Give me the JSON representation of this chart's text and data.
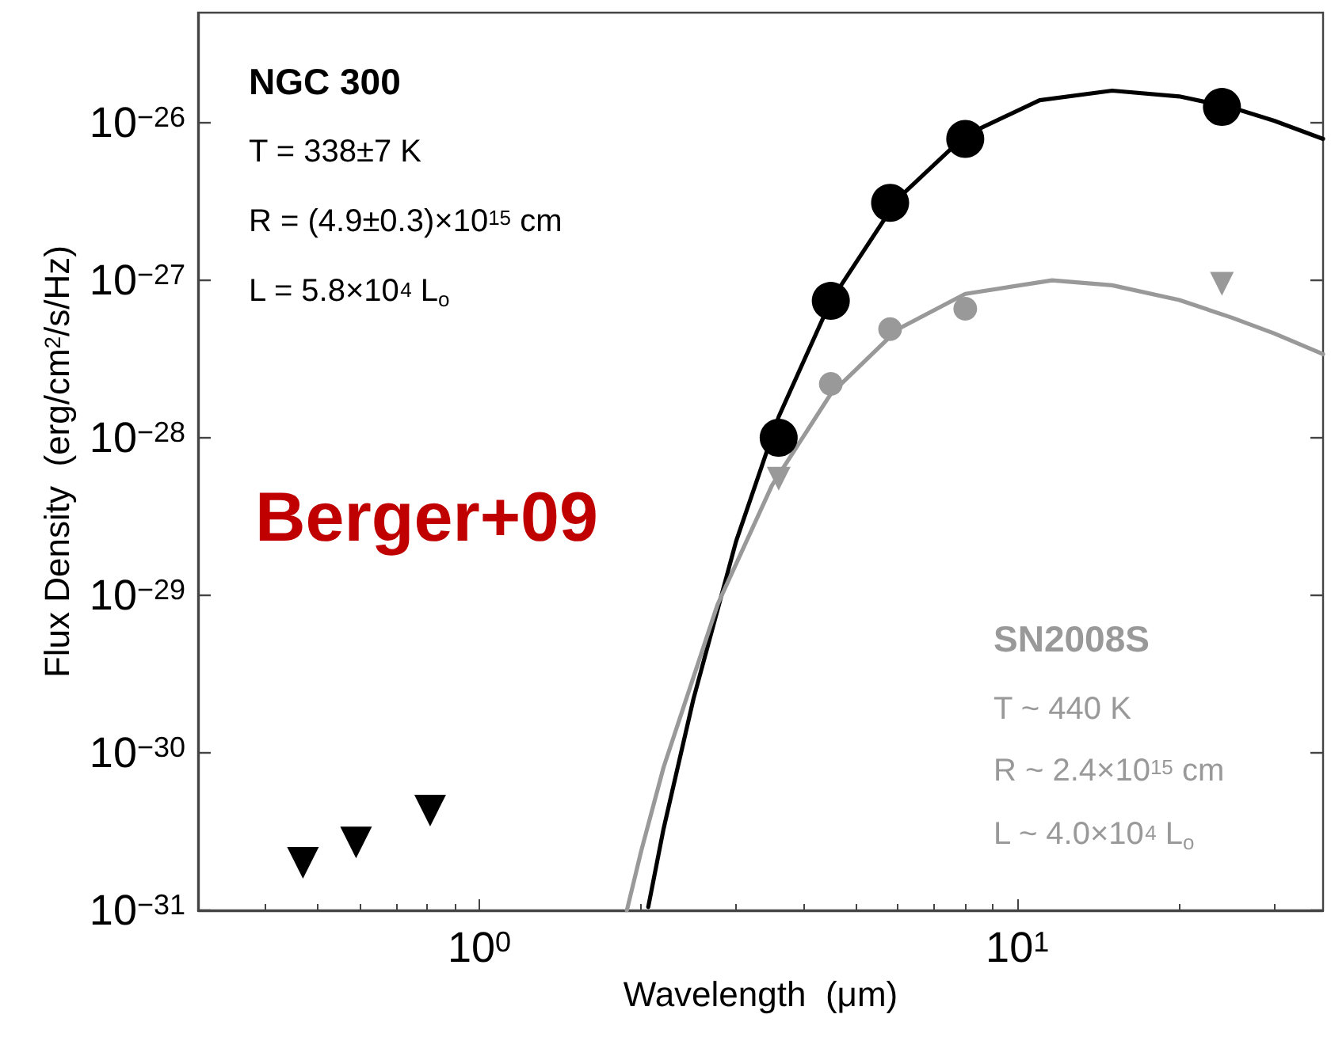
{
  "chart_data": {
    "type": "scatter",
    "xlabel": "Wavelength  (μm)",
    "ylabel": "Flux Density  (erg/cm$^{2}$/s/Hz)",
    "log": "xy",
    "xlim": [
      0.3,
      37
    ],
    "ylim": [
      1e-31,
      5e-26
    ],
    "xticks": [
      {
        "value": 1,
        "label": "10$^{0}$"
      },
      {
        "value": 10,
        "label": "10$^{1}$"
      }
    ],
    "yticks": [
      {
        "value": 1e-31,
        "label": "10$^{−31}$"
      },
      {
        "value": 1e-30,
        "label": "10$^{−30}$"
      },
      {
        "value": 1e-29,
        "label": "10$^{−29}$"
      },
      {
        "value": 1e-28,
        "label": "10$^{−28}$"
      },
      {
        "value": 1e-27,
        "label": "10$^{−27}$"
      },
      {
        "value": 1e-26,
        "label": "10$^{−26}$"
      }
    ],
    "grid": false,
    "series": [
      {
        "type": "line",
        "color": "#000000",
        "marker": "none",
        "x": [
          2.06,
          2.2,
          2.5,
          3,
          3.6,
          4.5,
          6,
          8,
          11,
          15,
          20,
          25,
          30,
          37
        ],
        "values": [
          1.05e-31,
          3.3e-31,
          2.2e-30,
          2.2e-29,
          1.36e-28,
          7.4e-28,
          3.3e-27,
          8.3e-27,
          1.39e-26,
          1.6e-26,
          1.47e-26,
          1.25e-26,
          1.03e-26,
          7.9e-27
        ]
      },
      {
        "type": "line",
        "color": "#999999",
        "marker": "none",
        "x": [
          1.88,
          2,
          2.2,
          2.77,
          3.5,
          4.5,
          6,
          8,
          11.6,
          15,
          20,
          25,
          30,
          37
        ],
        "values": [
          1e-31,
          2.4e-31,
          8.1e-31,
          8.7e-30,
          5e-29,
          1.9e-28,
          4.9e-28,
          8.2e-28,
          1e-27,
          9.3e-28,
          7.5e-28,
          5.8e-28,
          4.6e-28,
          3.4e-28
        ]
      },
      {
        "color": "#999999",
        "marker": "circle",
        "x": [
          4.5,
          5.8,
          8
        ],
        "values": [
          2.2e-28,
          4.9e-28,
          6.6e-28
        ]
      },
      {
        "color": "#999999",
        "marker": "triangle",
        "x": [
          3.6,
          24
        ],
        "values": [
          5.5e-29,
          9.5e-28
        ]
      },
      {
        "color": "#000000",
        "marker": "circle",
        "x": [
          3.6,
          4.5,
          5.8,
          8,
          24
        ],
        "values": [
          1e-28,
          7.4e-28,
          3.1e-27,
          7.9e-27,
          1.26e-26
        ]
      },
      {
        "color": "#000000",
        "marker": "triangle",
        "x": [
          0.47,
          0.59,
          0.81
        ],
        "values": [
          2e-31,
          2.7e-31,
          4.3e-31
        ]
      }
    ],
    "annotations": [
      "NGC 300",
      "T = 338±7 K",
      "R = (4.9±0.3)×10$^{15}$ cm",
      "L = 5.8×10$^{4}$ L$_{o}$",
      "Berger+09",
      "SN2008S",
      "T ~ 440 K",
      "R ~ 2.4×10$^{15}$ cm",
      "L ~ 4.0×10$^{4}$ L$_{o}$"
    ]
  }
}
